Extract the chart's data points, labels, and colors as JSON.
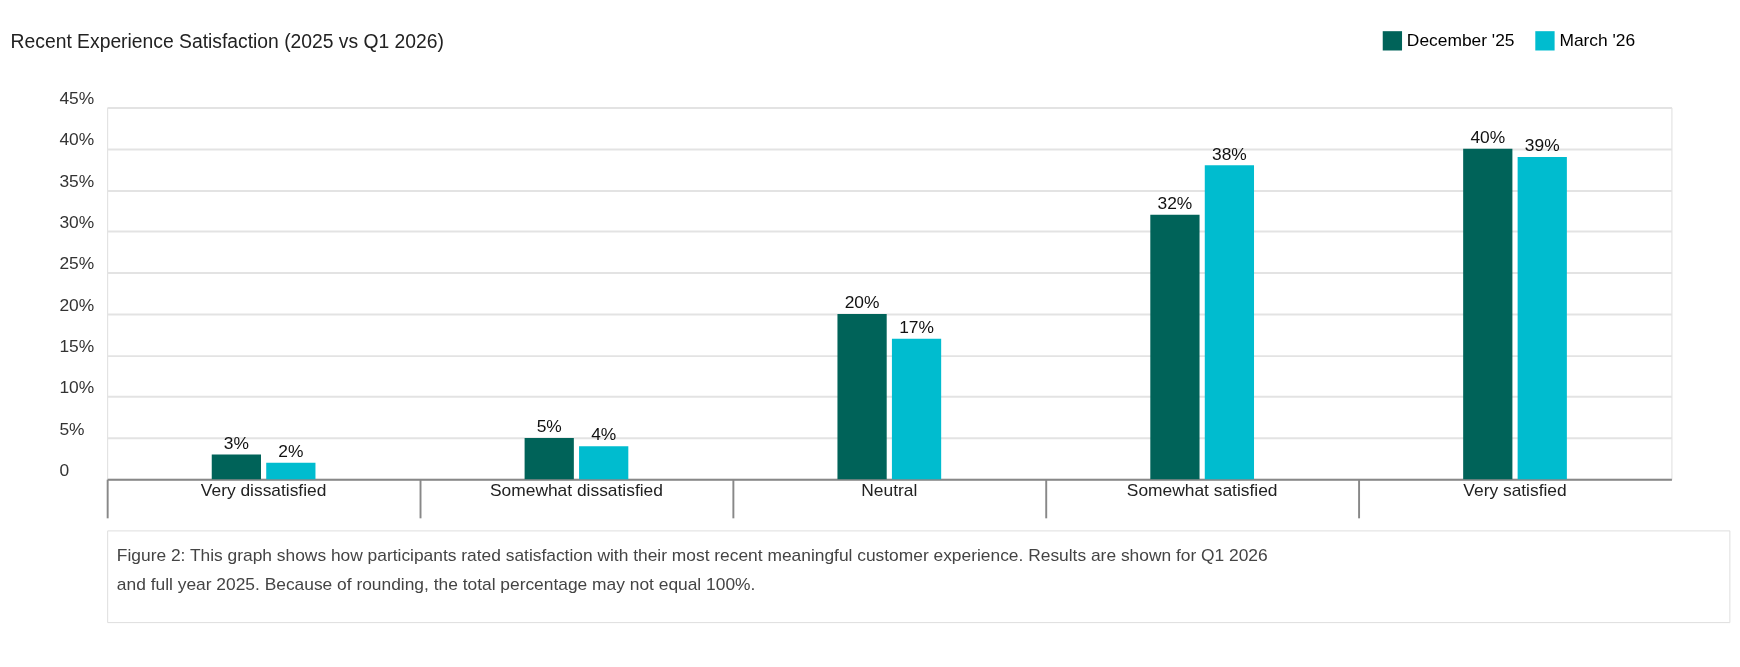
{
  "chart_data": {
    "type": "bar",
    "title": "Recent Experience Satisfaction (2025 vs Q1 2026)",
    "categories": [
      "Very dissatisfied",
      "Somewhat dissatisfied",
      "Neutral",
      "Somewhat satisfied",
      "Very satisfied"
    ],
    "series": [
      {
        "name": "December '25",
        "color": "#006359",
        "values": [
          3,
          5,
          20,
          32,
          40
        ],
        "value_labels": [
          "3%",
          "5%",
          "20%",
          "32%",
          "40%"
        ]
      },
      {
        "name": "March '26",
        "color": "#00bccf",
        "values": [
          2,
          4,
          17,
          38,
          39
        ],
        "value_labels": [
          "2%",
          "4%",
          "17%",
          "38%",
          "39%"
        ]
      }
    ],
    "ylim": [
      0,
      45
    ],
    "yticks": [
      0,
      {
        "value": 5,
        "label": "5%"
      },
      {
        "value": 10,
        "label": "10%"
      },
      {
        "value": 15,
        "label": "15%"
      },
      {
        "value": 20,
        "label": "20%"
      },
      {
        "value": 25,
        "label": "25%"
      },
      {
        "value": 30,
        "label": "30%"
      },
      {
        "value": 35,
        "label": "35%"
      },
      {
        "value": 40,
        "label": "40%"
      },
      {
        "value": 45,
        "label": "45%"
      }
    ],
    "grid": "y",
    "legend": "top right",
    "annotations": [
      "Figure 2: This graph shows how participants rated satisfaction with their most recent meaningful customer experience. Results are shown for Q1 2026 and full year 2025. Because of rounding, the total percentage may not equal 100%."
    ]
  }
}
